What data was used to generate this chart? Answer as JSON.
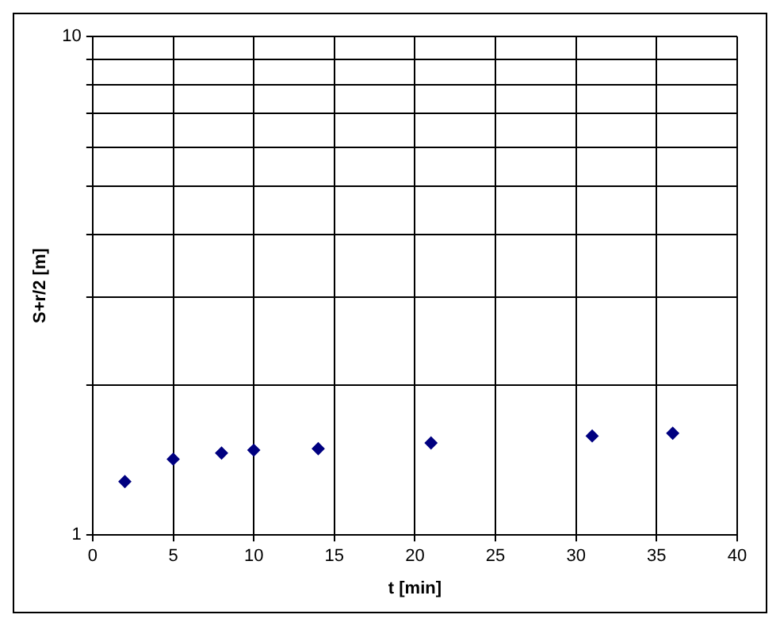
{
  "chart_data": {
    "type": "scatter",
    "xlabel": "t [min]",
    "ylabel": "S+r/2 [m]",
    "x": [
      2,
      5,
      8,
      10,
      14,
      21,
      31,
      36
    ],
    "series": [
      {
        "color": "#000080",
        "values": [
          1.28,
          1.42,
          1.46,
          1.48,
          1.49,
          1.53,
          1.58,
          1.6
        ]
      }
    ],
    "xlim": [
      0,
      40
    ],
    "xticks": [
      0,
      5,
      10,
      15,
      20,
      25,
      30,
      35,
      40
    ],
    "ylim": [
      1,
      10
    ],
    "yticks": [
      1,
      {
        "value": 2,
        "label": null
      },
      {
        "value": 3,
        "label": null
      },
      {
        "value": 4,
        "label": null
      },
      {
        "value": 5,
        "label": null
      },
      {
        "value": 6,
        "label": null
      },
      {
        "value": 7,
        "label": null
      },
      {
        "value": 8,
        "label": null
      },
      {
        "value": 9,
        "label": null
      },
      10
    ],
    "log": "y",
    "grid": true,
    "legend": false,
    "marker": "diamond"
  }
}
